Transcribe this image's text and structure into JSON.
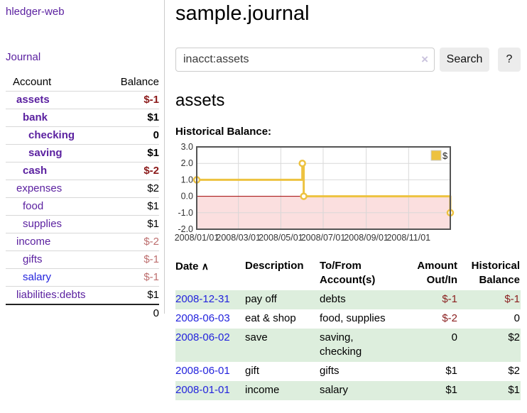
{
  "colors": {
    "link_purple": "#5b21a0",
    "link_blue": "#2323dd",
    "negative_strong": "#8b1a1a",
    "negative_soft": "#bd6e6e",
    "negative_register": "#8b2020",
    "row_green": "#ddeedd",
    "chart_series_gold": "#edc240",
    "chart_negative_bg": "#fbdfdf",
    "chart_zero_line": "#a00000"
  },
  "sidebar": {
    "app_title": "hledger-web",
    "nav_journal": "Journal",
    "accounts_table": {
      "headers": {
        "account": "Account",
        "balance": "Balance"
      },
      "rows": [
        {
          "name": "assets",
          "balance": "$-1"
        },
        {
          "name": "bank",
          "balance": "$1"
        },
        {
          "name": "checking",
          "balance": "0"
        },
        {
          "name": "saving",
          "balance": "$1"
        },
        {
          "name": "cash",
          "balance": "$-2"
        },
        {
          "name": "expenses",
          "balance": "$2"
        },
        {
          "name": "food",
          "balance": "$1"
        },
        {
          "name": "supplies",
          "balance": "$1"
        },
        {
          "name": "income",
          "balance": "$-2"
        },
        {
          "name": "gifts",
          "balance": "$-1"
        },
        {
          "name": "salary",
          "balance": "$-1"
        },
        {
          "name": "liabilities:debts",
          "balance": "$1"
        }
      ],
      "total": "0"
    }
  },
  "header": {
    "title": "sample.journal"
  },
  "search": {
    "value": "inacct:assets",
    "clear_icon": "×",
    "button_label": "Search",
    "help_label": "?"
  },
  "account_page": {
    "title": "assets",
    "chart_label": "Historical Balance:"
  },
  "chart_data": {
    "type": "line",
    "step": true,
    "series": [
      {
        "name": "$",
        "color": "#edc240",
        "points": [
          [
            "2008-01-01",
            1
          ],
          [
            "2008-06-01",
            2
          ],
          [
            "2008-06-03",
            0
          ],
          [
            "2008-12-31",
            -1
          ]
        ]
      }
    ],
    "xlim": [
      "2008-01-01",
      "2008-12-31"
    ],
    "ylim": [
      -2,
      3
    ],
    "xticks": [
      "2008/01/01",
      "2008/03/01",
      "2008/05/01",
      "2008/07/01",
      "2008/09/01",
      "2008/11/01"
    ],
    "yticks": [
      3.0,
      2.0,
      1.0,
      0.0,
      -1.0,
      -2.0
    ],
    "legend_position": "top-right",
    "legend_label": "$",
    "grid": true,
    "negative_region_shaded": true
  },
  "register": {
    "headers": {
      "date": "Date",
      "sort_icon": "∧",
      "description": "Description",
      "accounts": "To/From Account(s)",
      "amount": "Amount Out/In",
      "balance": "Historical Balance"
    },
    "rows": [
      {
        "date": "2008-12-31",
        "description": "pay off",
        "accounts": "debts",
        "amount": "$-1",
        "balance": "$-1"
      },
      {
        "date": "2008-06-03",
        "description": "eat & shop",
        "accounts": "food, supplies",
        "amount": "$-2",
        "balance": "0"
      },
      {
        "date": "2008-06-02",
        "description": "save",
        "accounts": "saving, checking",
        "amount": "0",
        "balance": "$2"
      },
      {
        "date": "2008-06-01",
        "description": "gift",
        "accounts": "gifts",
        "amount": "$1",
        "balance": "$2"
      },
      {
        "date": "2008-01-01",
        "description": "income",
        "accounts": "salary",
        "amount": "$1",
        "balance": "$1"
      }
    ]
  }
}
